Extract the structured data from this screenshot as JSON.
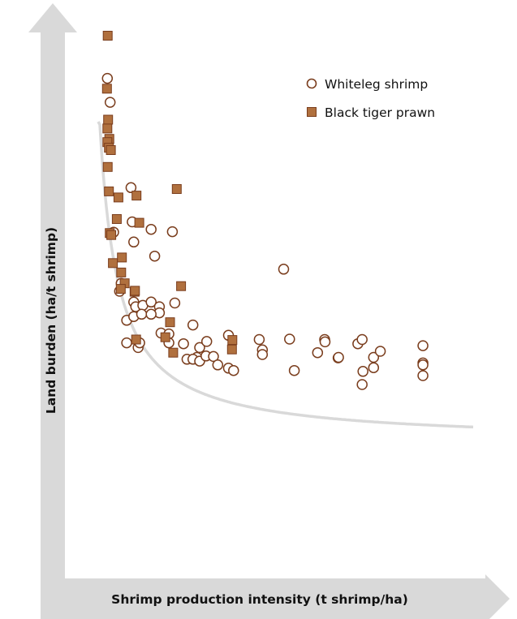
{
  "chart_data": {
    "type": "scatter",
    "title": "",
    "xlabel": "Shrimp production intensity (t shrimp/ha)",
    "ylabel": "Land burden (ha/t shrimp)",
    "xlim": [
      0,
      100
    ],
    "ylim": [
      0,
      100
    ],
    "ticks": "none",
    "grid": false,
    "legend_position": "top-right",
    "trend_line": {
      "type": "hyperbolic",
      "color": "#d9d9d9"
    },
    "colors": {
      "axis": "#d9d9d9",
      "whiteleg_stroke": "#7a3d1d",
      "tiger_fill": "#b0703e",
      "tiger_stroke": "#7a3d1d"
    },
    "series": [
      {
        "name": "Whiteleg shrimp",
        "marker": "circle",
        "points": [
          [
            8.9,
            90.9
          ],
          [
            9.6,
            85.8
          ],
          [
            14.9,
            67.6
          ],
          [
            15.2,
            60.3
          ],
          [
            10.5,
            58.1
          ],
          [
            15.6,
            56.0
          ],
          [
            20.0,
            58.7
          ],
          [
            20.9,
            53.0
          ],
          [
            25.4,
            58.2
          ],
          [
            12.4,
            47.2
          ],
          [
            12.0,
            45.5
          ],
          [
            15.6,
            43.2
          ],
          [
            16.1,
            42.2
          ],
          [
            17.9,
            42.5
          ],
          [
            20.0,
            43.2
          ],
          [
            22.1,
            42.2
          ],
          [
            22.1,
            40.9
          ],
          [
            26.0,
            43.0
          ],
          [
            13.8,
            39.3
          ],
          [
            15.6,
            40.1
          ],
          [
            17.6,
            40.6
          ],
          [
            20.0,
            40.6
          ],
          [
            13.8,
            34.5
          ],
          [
            16.7,
            33.5
          ],
          [
            17.1,
            34.5
          ],
          [
            22.5,
            36.6
          ],
          [
            24.5,
            36.4
          ],
          [
            24.5,
            34.5
          ],
          [
            30.6,
            38.3
          ],
          [
            28.2,
            34.3
          ],
          [
            32.3,
            33.5
          ],
          [
            34.1,
            34.8
          ],
          [
            31.6,
            31.4
          ],
          [
            29.1,
            31.0
          ],
          [
            30.6,
            31.0
          ],
          [
            32.3,
            30.6
          ],
          [
            33.9,
            31.7
          ],
          [
            35.8,
            31.6
          ],
          [
            39.6,
            36.1
          ],
          [
            36.9,
            29.8
          ],
          [
            39.6,
            29.1
          ],
          [
            40.9,
            28.6
          ],
          [
            53.6,
            50.2
          ],
          [
            47.4,
            35.2
          ],
          [
            48.2,
            33.0
          ],
          [
            48.2,
            32.0
          ],
          [
            55.1,
            35.3
          ],
          [
            56.3,
            28.6
          ],
          [
            62.2,
            32.4
          ],
          [
            64.0,
            35.2
          ],
          [
            64.1,
            34.7
          ],
          [
            67.4,
            31.3
          ],
          [
            67.5,
            31.4
          ],
          [
            72.4,
            34.3
          ],
          [
            73.5,
            35.2
          ],
          [
            76.4,
            31.4
          ],
          [
            78.1,
            32.7
          ],
          [
            73.7,
            28.4
          ],
          [
            76.4,
            29.2
          ],
          [
            73.5,
            25.6
          ],
          [
            88.9,
            33.9
          ],
          [
            88.9,
            30.2
          ],
          [
            88.9,
            29.8
          ],
          [
            88.9,
            27.5
          ]
        ]
      },
      {
        "name": "Black tiger prawn",
        "marker": "square",
        "points": [
          [
            9.0,
            100.0
          ],
          [
            8.8,
            88.7
          ],
          [
            9.1,
            82.1
          ],
          [
            8.9,
            80.2
          ],
          [
            9.4,
            78.0
          ],
          [
            8.9,
            77.3
          ],
          [
            9.3,
            76.1
          ],
          [
            9.8,
            75.6
          ],
          [
            9.0,
            72.0
          ],
          [
            9.3,
            66.8
          ],
          [
            11.7,
            65.5
          ],
          [
            16.3,
            65.9
          ],
          [
            26.5,
            67.3
          ],
          [
            11.3,
            60.9
          ],
          [
            17.0,
            60.1
          ],
          [
            9.5,
            57.9
          ],
          [
            9.9,
            57.5
          ],
          [
            10.3,
            51.5
          ],
          [
            12.6,
            52.7
          ],
          [
            12.4,
            49.5
          ],
          [
            13.3,
            47.2
          ],
          [
            12.3,
            46.0
          ],
          [
            15.8,
            45.4
          ],
          [
            15.9,
            45.6
          ],
          [
            27.6,
            46.6
          ],
          [
            24.8,
            38.9
          ],
          [
            16.2,
            35.2
          ],
          [
            23.6,
            35.7
          ],
          [
            25.6,
            32.4
          ],
          [
            40.6,
            35.1
          ],
          [
            40.5,
            33.1
          ]
        ]
      }
    ]
  }
}
